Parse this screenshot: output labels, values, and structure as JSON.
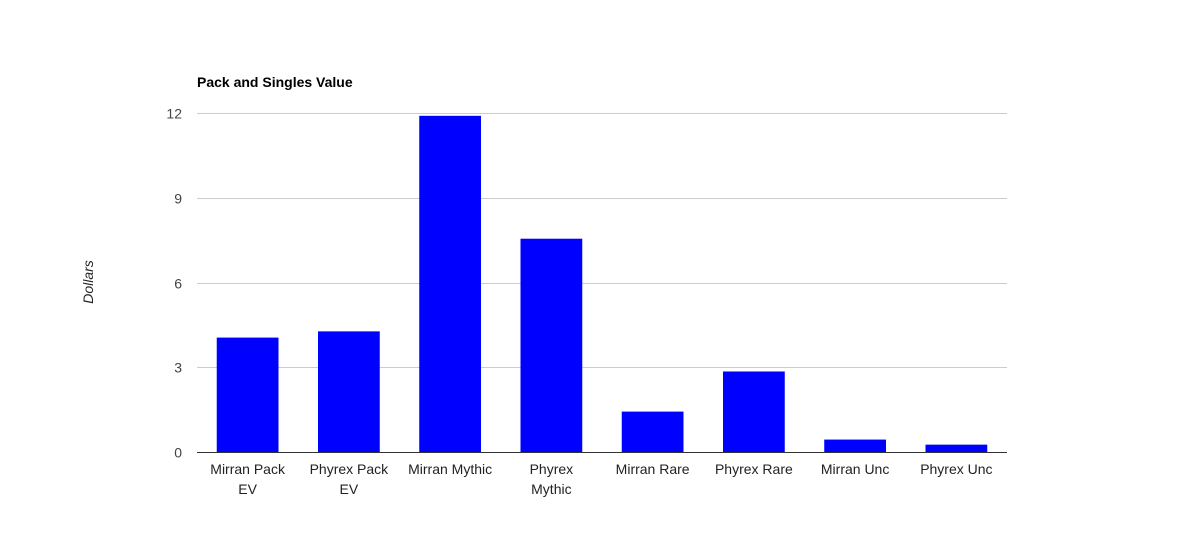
{
  "chart_data": {
    "type": "bar",
    "title": "Pack and Singles Value",
    "xlabel": "",
    "ylabel": "Dollars",
    "categories": [
      [
        "Mirran Pack",
        "EV"
      ],
      [
        "Phyrex Pack",
        "EV"
      ],
      [
        "Mirran Mythic"
      ],
      [
        "Phyrex",
        "Mythic"
      ],
      [
        "Mirran Rare"
      ],
      [
        "Phyrex Rare"
      ],
      [
        "Mirran Unc"
      ],
      [
        "Phyrex Unc"
      ]
    ],
    "values": [
      4.05,
      4.27,
      11.9,
      7.55,
      1.43,
      2.85,
      0.44,
      0.26
    ],
    "ylim": [
      0,
      12
    ],
    "yticks": [
      0,
      3,
      6,
      9,
      12
    ],
    "grid": true,
    "legend": "none",
    "color": "#0000ff"
  }
}
